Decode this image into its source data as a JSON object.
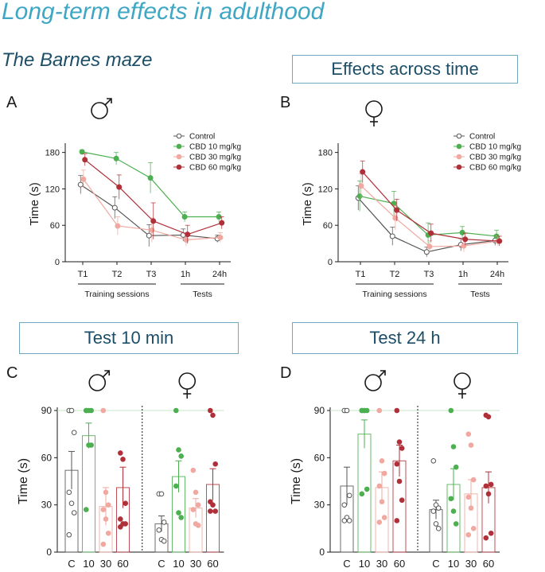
{
  "header": {
    "title": "Long-term effects in adulthood",
    "subtitle": "The Barnes maze",
    "effects_box": "Effects across time",
    "test10_box": "Test 10 min",
    "test24_box": "Test 24 h"
  },
  "colors": {
    "control": "#555555",
    "cbd10": "#4caf50",
    "cbd30": "#f0a8a0",
    "cbd60": "#b0303a",
    "accent": "#3fa7c4"
  },
  "chart_data": [
    {
      "panel": "A",
      "sex": "male",
      "type": "line",
      "ylabel": "Time (s)",
      "ylim": [
        0,
        190
      ],
      "yticks": [
        0,
        60,
        120,
        180
      ],
      "categories": [
        "T1",
        "T2",
        "T3",
        "1h",
        "24h"
      ],
      "groups": [
        {
          "label": "Training sessions",
          "from": 0,
          "to": 2
        },
        {
          "label": "Tests",
          "from": 3,
          "to": 4
        }
      ],
      "legend": [
        "Control",
        "CBD 10 mg/kg",
        "CBD 30 mg/kg",
        "CBD 60 mg/kg"
      ],
      "series": [
        {
          "name": "Control",
          "values": [
            127,
            89,
            43,
            44,
            38
          ],
          "err": [
            15,
            18,
            18,
            10,
            6
          ]
        },
        {
          "name": "CBD 10 mg/kg",
          "values": [
            181,
            170,
            138,
            74,
            74
          ],
          "err": [
            3,
            10,
            25,
            8,
            8
          ]
        },
        {
          "name": "CBD 30 mg/kg",
          "values": [
            136,
            59,
            52,
            36,
            40
          ],
          "err": [
            15,
            15,
            20,
            10,
            8
          ]
        },
        {
          "name": "CBD 60 mg/kg",
          "values": [
            168,
            123,
            67,
            45,
            64
          ],
          "err": [
            10,
            20,
            30,
            15,
            10
          ]
        }
      ]
    },
    {
      "panel": "B",
      "sex": "female",
      "type": "line",
      "ylabel": "Time (s)",
      "ylim": [
        0,
        190
      ],
      "yticks": [
        0,
        60,
        120,
        180
      ],
      "categories": [
        "T1",
        "T2",
        "T3",
        "1h",
        "24h"
      ],
      "groups": [
        {
          "label": "Training sessions",
          "from": 0,
          "to": 2
        },
        {
          "label": "Tests",
          "from": 3,
          "to": 4
        }
      ],
      "legend": [
        "Control",
        "CBD 10 mg/kg",
        "CBD 30 mg/kg",
        "CBD 60 mg/kg"
      ],
      "series": [
        {
          "name": "Control",
          "values": [
            105,
            42,
            16,
            28,
            35
          ],
          "err": [
            20,
            15,
            8,
            10,
            8
          ]
        },
        {
          "name": "CBD 10 mg/kg",
          "values": [
            108,
            96,
            44,
            48,
            42
          ],
          "err": [
            25,
            20,
            20,
            10,
            10
          ]
        },
        {
          "name": "CBD 30 mg/kg",
          "values": [
            125,
            72,
            25,
            26,
            34
          ],
          "err": [
            20,
            20,
            10,
            10,
            8
          ]
        },
        {
          "name": "CBD 60 mg/kg",
          "values": [
            148,
            85,
            47,
            37,
            34
          ],
          "err": [
            18,
            18,
            15,
            10,
            8
          ]
        }
      ]
    },
    {
      "panel": "C",
      "type": "bar",
      "ylabel": "Time (s)",
      "ylim": [
        0,
        90
      ],
      "yticks": [
        0,
        30,
        60,
        90
      ],
      "categories": [
        "C",
        "10",
        "30",
        "60",
        "C",
        "10",
        "30",
        "60"
      ],
      "sex_groups": [
        "male",
        "female"
      ],
      "bars": [
        {
          "group": "C",
          "sex": "male",
          "mean": 52,
          "sem": 12,
          "points": [
            90,
            90,
            76,
            38,
            31,
            25,
            11
          ]
        },
        {
          "group": "10",
          "sex": "male",
          "mean": 74,
          "sem": 8,
          "points": [
            90,
            90,
            90,
            90,
            68,
            68,
            27
          ]
        },
        {
          "group": "30",
          "sex": "male",
          "mean": 29,
          "sem": 12,
          "points": [
            90,
            38,
            30,
            27,
            21,
            12,
            5
          ]
        },
        {
          "group": "60",
          "sex": "male",
          "mean": 41,
          "sem": 13,
          "points": [
            63,
            59,
            31,
            21,
            18,
            18,
            16
          ]
        },
        {
          "group": "C",
          "sex": "female",
          "mean": 18,
          "sem": 5,
          "points": [
            37,
            37,
            19,
            14,
            8,
            7
          ]
        },
        {
          "group": "10",
          "sex": "female",
          "mean": 48,
          "sem": 10,
          "points": [
            90,
            65,
            61,
            42,
            25,
            22
          ]
        },
        {
          "group": "30",
          "sex": "female",
          "mean": 28,
          "sem": 6,
          "points": [
            52,
            38,
            30,
            27,
            18,
            17
          ]
        },
        {
          "group": "60",
          "sex": "female",
          "mean": 43,
          "sem": 10,
          "points": [
            90,
            87,
            56,
            32,
            30,
            26,
            26
          ]
        }
      ]
    },
    {
      "panel": "D",
      "type": "bar",
      "ylabel": "Time (s)",
      "ylim": [
        0,
        90
      ],
      "yticks": [
        0,
        30,
        60,
        90
      ],
      "categories": [
        "C",
        "10",
        "30",
        "60",
        "C",
        "10",
        "30",
        "60"
      ],
      "sex_groups": [
        "male",
        "female"
      ],
      "bars": [
        {
          "group": "C",
          "sex": "male",
          "mean": 42,
          "sem": 12,
          "points": [
            90,
            90,
            36,
            30,
            22,
            20,
            20
          ]
        },
        {
          "group": "10",
          "sex": "male",
          "mean": 75,
          "sem": 9,
          "points": [
            90,
            90,
            90,
            90,
            90,
            40,
            37
          ]
        },
        {
          "group": "30",
          "sex": "male",
          "mean": 41,
          "sem": 10,
          "points": [
            90,
            58,
            50,
            42,
            32,
            22,
            19
          ]
        },
        {
          "group": "60",
          "sex": "male",
          "mean": 58,
          "sem": 10,
          "points": [
            90,
            70,
            66,
            56,
            45,
            33,
            20
          ]
        },
        {
          "group": "C",
          "sex": "female",
          "mean": 27,
          "sem": 6,
          "points": [
            58,
            30,
            28,
            26,
            18,
            15
          ]
        },
        {
          "group": "10",
          "sex": "female",
          "mean": 43,
          "sem": 10,
          "points": [
            90,
            67,
            54,
            34,
            26,
            18
          ]
        },
        {
          "group": "30",
          "sex": "female",
          "mean": 37,
          "sem": 9,
          "points": [
            75,
            68,
            46,
            35,
            28,
            15,
            11
          ]
        },
        {
          "group": "60",
          "sex": "female",
          "mean": 41,
          "sem": 10,
          "points": [
            87,
            86,
            43,
            42,
            37,
            12,
            9
          ]
        }
      ]
    }
  ]
}
